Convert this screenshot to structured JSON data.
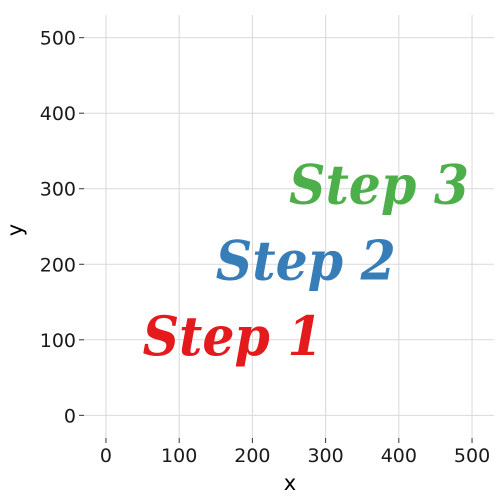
{
  "chart_data": {
    "type": "scatter",
    "title": "",
    "xlabel": "x",
    "ylabel": "y",
    "xlim": [
      -30,
      530
    ],
    "ylim": [
      -30,
      530
    ],
    "x_ticks": [
      0,
      100,
      200,
      300,
      400,
      500
    ],
    "y_ticks": [
      0,
      100,
      200,
      300,
      400,
      500
    ],
    "x_tick_labels": [
      "0",
      "100",
      "200",
      "300",
      "400",
      "500"
    ],
    "y_tick_labels": [
      "0",
      "100",
      "200",
      "300",
      "400",
      "500"
    ],
    "grid": true,
    "legend": "none",
    "points": [
      {
        "x": 50,
        "y": 100,
        "label": "Step 1",
        "color": "#e41a1c"
      },
      {
        "x": 150,
        "y": 200,
        "label": "Step 2",
        "color": "#377eb8"
      },
      {
        "x": 250,
        "y": 300,
        "label": "Step 3",
        "color": "#4daf4a"
      }
    ]
  }
}
